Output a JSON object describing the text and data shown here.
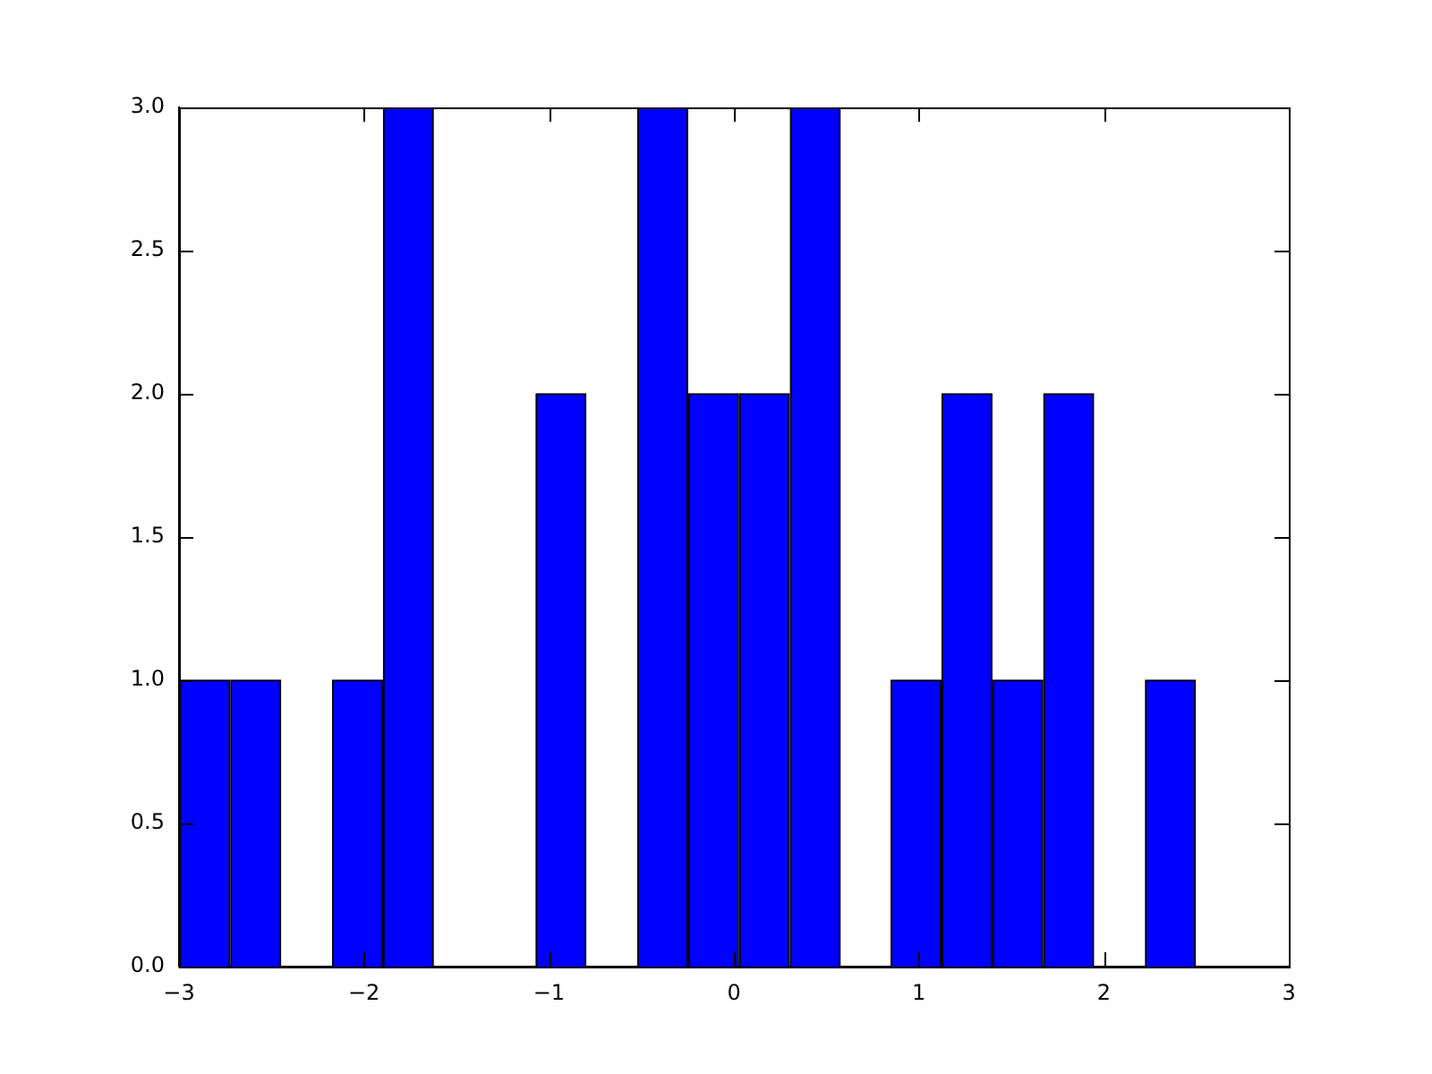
{
  "chart_data": {
    "type": "histogram",
    "bins": [
      -3,
      -2.72,
      -2.45,
      -2.17,
      -1.9,
      -1.62,
      -1.35,
      -1.07,
      -0.8,
      -0.52,
      -0.25,
      0.03,
      0.3,
      0.58,
      0.85,
      1.12,
      1.4,
      1.67,
      1.95,
      2.22,
      2.5
    ],
    "values": [
      1,
      1,
      0,
      1,
      3,
      0,
      0,
      2,
      0,
      3,
      2,
      2,
      3,
      0,
      1,
      2,
      1,
      2,
      0,
      1
    ],
    "color": "#0000ff",
    "xlim": [
      -3,
      3
    ],
    "xticks": [
      {
        "value": -3,
        "label": "−3"
      },
      {
        "value": -2,
        "label": "−2"
      },
      {
        "value": -1,
        "label": "−1"
      },
      0,
      1,
      2,
      3
    ],
    "ylim": [
      0,
      3
    ],
    "yticks": [
      {
        "value": 0,
        "label": "0.0"
      },
      {
        "value": 0.5,
        "label": "0.5"
      },
      {
        "value": 1,
        "label": "1.0"
      },
      {
        "value": 1.5,
        "label": "1.5"
      },
      {
        "value": 2,
        "label": "2.0"
      },
      {
        "value": 2.5,
        "label": "2.5"
      },
      {
        "value": 3,
        "label": "3.0"
      }
    ],
    "grid": false,
    "legend": false
  }
}
